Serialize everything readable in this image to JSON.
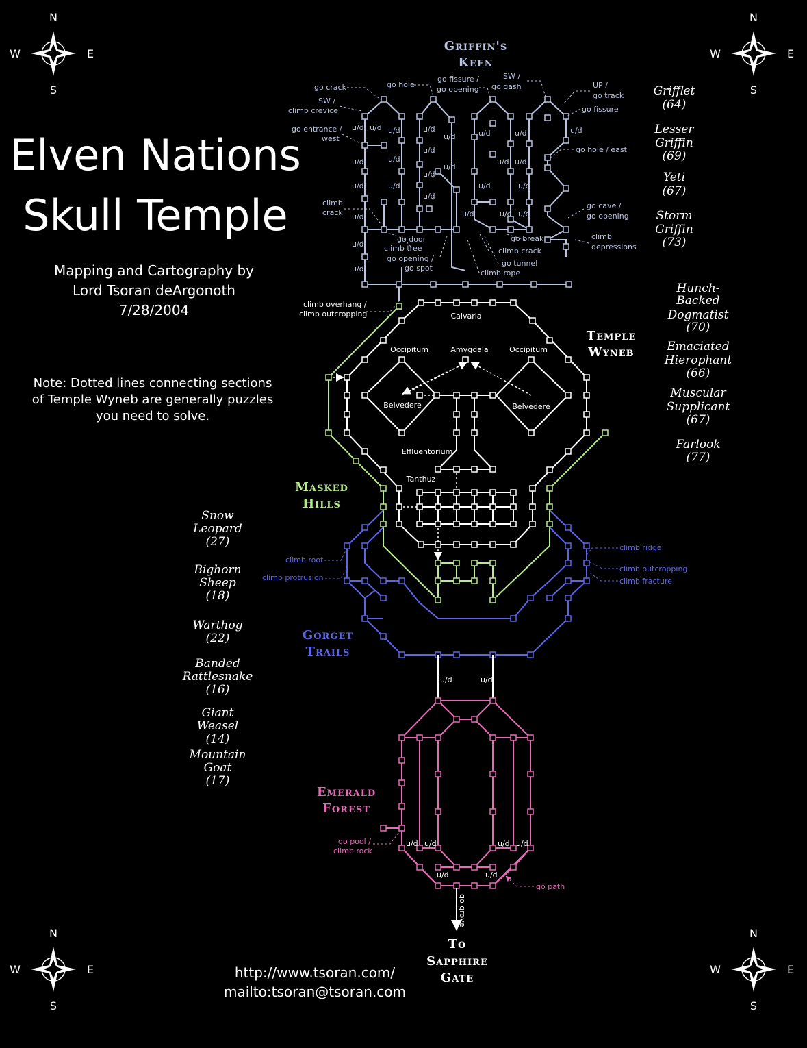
{
  "title": {
    "line1": "Elven Nations",
    "line2": "Skull Temple"
  },
  "credit": {
    "line1": "Mapping and Cartography by",
    "line2": "Lord Tsoran deArgonoth",
    "date": "7/28/2004"
  },
  "note": {
    "line1": "Note:  Dotted lines connecting sections",
    "line2": "of Temple Wyneb are generally puzzles",
    "line3": "you need to solve."
  },
  "links": {
    "url": "http://www.tsoran.com/",
    "mail": "mailto:tsoran@tsoran.com"
  },
  "compass": {
    "n": "N",
    "s": "S",
    "w": "W",
    "e": "E"
  },
  "colors": {
    "keen": "#b8c4e0",
    "wyneb": "#ffffff",
    "hills": "#b7ea8e",
    "gorget": "#5a66ea",
    "forest": "#e66ab6",
    "exit": "#ffffff"
  },
  "sections": {
    "keen": {
      "line1": "Griffin's",
      "line2": "Keen"
    },
    "wyneb": {
      "line1": "Temple",
      "line2": "Wyneb"
    },
    "hills": {
      "line1": "Masked",
      "line2": "Hills"
    },
    "gorget": {
      "line1": "Gorget",
      "line2": "Trails"
    },
    "forest": {
      "line1": "Emerald",
      "line2": "Forest"
    },
    "exit": {
      "line1": "To",
      "line2": "Sapphire",
      "line3": "Gate"
    }
  },
  "monsters_right": [
    {
      "name1": "Grifflet",
      "name2": "",
      "level": "(64)"
    },
    {
      "name1": "Lesser",
      "name2": "Griffin",
      "level": "(69)"
    },
    {
      "name1": "Yeti",
      "name2": "",
      "level": "(67)"
    },
    {
      "name1": "Storm",
      "name2": "Griffin",
      "level": "(73)"
    },
    {
      "name1": "Hunch-",
      "name2": "Backed",
      "name3": "Dogmatist",
      "level": "(70)"
    },
    {
      "name1": "Emaciated",
      "name2": "Hierophant",
      "level": "(66)"
    },
    {
      "name1": "Muscular",
      "name2": "Supplicant",
      "level": "(67)"
    },
    {
      "name1": "Farlook",
      "name2": "",
      "level": "(77)"
    }
  ],
  "monsters_left": [
    {
      "name1": "Snow",
      "name2": "Leopard",
      "level": "(27)"
    },
    {
      "name1": "Bighorn",
      "name2": "Sheep",
      "level": "(18)"
    },
    {
      "name1": "Warthog",
      "name2": "",
      "level": "(22)"
    },
    {
      "name1": "Banded",
      "name2": "Rattlesnake",
      "level": "(16)"
    },
    {
      "name1": "Giant",
      "name2": "Weasel",
      "level": "(14)"
    },
    {
      "name1": "Mountain",
      "name2": "Goat",
      "level": "(17)"
    }
  ],
  "labels": {
    "keen": {
      "go_crack": "go crack",
      "sw1": "SW /",
      "climb_crevice": "climb crevice",
      "go_entrance": "go entrance /",
      "west": "west",
      "go_hole": "go hole",
      "go_fissure_op1": "go fissure /",
      "go_fissure_op2": "go opening",
      "sw2": "SW /",
      "go_gash": "go gash",
      "up": "UP /",
      "go_track": "go track",
      "go_fissure": "go fissure",
      "go_hole_east": "go hole / east",
      "climb": "climb",
      "crack": "crack",
      "go_cave": "go cave /",
      "go_opening": "go opening",
      "climb2": "climb",
      "depressions": "depressions",
      "go_door": "go door",
      "climb_tree": "climb tree",
      "go_opening2": "go opening /",
      "go_spot": "go spot",
      "go_break": "go break",
      "climb_crack": "climb  crack",
      "go_tunnel": "go tunnel",
      "climb_rope": "climb rope",
      "climb_overhang": "climb overhang /",
      "climb_outcropping": "climb outcropping",
      "ud": "u/d"
    },
    "wyneb": {
      "calvaria": "Calvaria",
      "occipitum": "Occipitum",
      "amygdala": "Amygdala",
      "belvedere": "Belvedere",
      "effluentorium": "Effluentorium",
      "tanthuz": "Tanthuz"
    },
    "gorget": {
      "climb_root": "climb root",
      "climb_protrusion": "climb protrusion",
      "climb_ridge": "climb ridge",
      "climb_outcropping": "climb outcropping",
      "climb_fracture": "climb fracture",
      "ud": "u/d"
    },
    "forest": {
      "go_pool": "go pool /",
      "climb_rock": "climb rock",
      "go_path": "go path",
      "go_grove": "go grove",
      "ud": "u/d"
    }
  }
}
